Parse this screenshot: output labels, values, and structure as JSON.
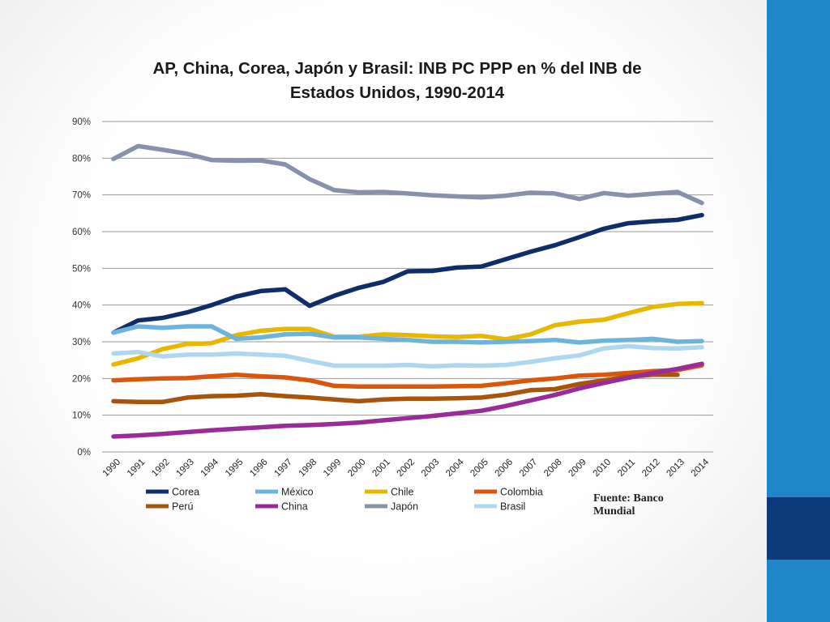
{
  "slide": {
    "source": "Fuente: Banco Mundial",
    "accent_light": "#1f86c8",
    "accent_dark": "#0c3a78"
  },
  "chart_data": {
    "type": "line",
    "title_line1": "AP, China, Corea, Japón y Brasil: INB PC PPP en % del INB de",
    "title_line2": "Estados Unidos, 1990-2014",
    "xlabel": "",
    "ylabel": "",
    "ylim": [
      0,
      90
    ],
    "yticks": [
      "0%",
      "10%",
      "20%",
      "30%",
      "40%",
      "50%",
      "60%",
      "70%",
      "80%",
      "90%"
    ],
    "grid": true,
    "legend_position": "bottom",
    "x": [
      "1990",
      "1991",
      "1992",
      "1993",
      "1994",
      "1995",
      "1996",
      "1997",
      "1998",
      "1999",
      "2000",
      "2001",
      "2002",
      "2003",
      "2004",
      "2005",
      "2006",
      "2007",
      "2008",
      "2009",
      "2010",
      "2011",
      "2012",
      "2013",
      "2014"
    ],
    "series": [
      {
        "name": "Corea",
        "color": "#0f2d69",
        "values": [
          32.5,
          35.8,
          36.5,
          38,
          40,
          42.3,
          43.8,
          44.3,
          39.8,
          42.5,
          44.7,
          46.3,
          49.2,
          49.3,
          50.2,
          50.5,
          52.5,
          54.5,
          56.3,
          58.5,
          60.8,
          62.3,
          62.8,
          63.2,
          64.5
        ]
      },
      {
        "name": "México",
        "color": "#6cb4dc",
        "values": [
          32.5,
          34.2,
          33.8,
          34.2,
          34.2,
          30.8,
          31.2,
          32,
          32.2,
          31.2,
          31.2,
          30.8,
          30.5,
          30,
          30,
          29.8,
          30,
          30.2,
          30.5,
          29.8,
          30.3,
          30.5,
          30.8,
          30,
          30.2
        ]
      },
      {
        "name": "Chile",
        "color": "#e8b800",
        "values": [
          23.8,
          25.5,
          28,
          29.4,
          29.6,
          31.8,
          33,
          33.5,
          33.5,
          31.4,
          31.4,
          32,
          31.8,
          31.5,
          31.3,
          31.6,
          30.7,
          32,
          34.5,
          35.5,
          36,
          37.8,
          39.5,
          40.3,
          40.5
        ]
      },
      {
        "name": "Colombia",
        "color": "#d9560c",
        "values": [
          19.5,
          19.8,
          20,
          20.1,
          20.6,
          21,
          20.6,
          20.3,
          19.5,
          18,
          17.8,
          17.8,
          17.8,
          17.8,
          17.9,
          18,
          18.7,
          19.5,
          20,
          20.8,
          21,
          21.5,
          22,
          22.3,
          23.6
        ]
      },
      {
        "name": "Perú",
        "color": "#a8540c",
        "values": [
          13.8,
          13.6,
          13.6,
          14.8,
          15.2,
          15.3,
          15.7,
          15.2,
          14.8,
          14.3,
          13.8,
          14.3,
          14.5,
          14.5,
          14.6,
          14.8,
          15.6,
          16.8,
          17.1,
          18.5,
          19.5,
          20.5,
          21,
          21,
          null
        ]
      },
      {
        "name": "China",
        "color": "#9a2c9a",
        "values": [
          4.2,
          4.5,
          4.9,
          5.4,
          5.9,
          6.3,
          6.7,
          7.1,
          7.3,
          7.6,
          8,
          8.6,
          9.2,
          9.8,
          10.5,
          11.2,
          12.5,
          14,
          15.5,
          17.3,
          18.8,
          20.2,
          21.5,
          22.6,
          24
        ]
      },
      {
        "name": "Japón",
        "color": "#8791ad",
        "values": [
          79.8,
          83.3,
          82.3,
          81.2,
          79.5,
          79.3,
          79.4,
          78.3,
          74.3,
          71.3,
          70.7,
          70.8,
          70.4,
          69.9,
          69.6,
          69.3,
          69.8,
          70.6,
          70.4,
          68.9,
          70.5,
          69.8,
          70.3,
          70.8,
          67.8
        ]
      },
      {
        "name": "Brasil",
        "color": "#add8ef",
        "values": [
          26.8,
          27.2,
          26,
          26.5,
          26.5,
          26.8,
          26.5,
          26.2,
          24.8,
          23.5,
          23.5,
          23.5,
          23.7,
          23.3,
          23.6,
          23.5,
          23.7,
          24.5,
          25.5,
          26.3,
          28.2,
          28.8,
          28.3,
          28.2,
          28.5
        ]
      }
    ]
  }
}
